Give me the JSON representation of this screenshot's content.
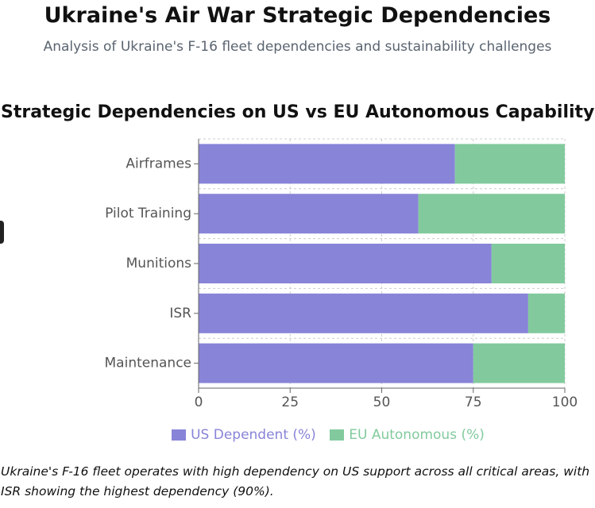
{
  "header": {
    "title": "Ukraine's Air War Strategic Dependencies",
    "subtitle": "Analysis of Ukraine's F-16 fleet dependencies and sustainability challenges"
  },
  "chart_data": {
    "type": "bar",
    "orientation": "horizontal",
    "stacked": true,
    "title": "Strategic Dependencies on US vs EU Autonomous Capability",
    "categories": [
      "Airframes",
      "Pilot Training",
      "Munitions",
      "ISR",
      "Maintenance"
    ],
    "series": [
      {
        "name": "US Dependent (%)",
        "values": [
          70,
          60,
          80,
          90,
          75
        ],
        "color": "#8884d8"
      },
      {
        "name": "EU Autonomous (%)",
        "values": [
          30,
          40,
          20,
          10,
          25
        ],
        "color": "#82ca9d"
      }
    ],
    "xticks": [
      "0",
      "25",
      "50",
      "75",
      "100"
    ],
    "xlim": [
      0,
      100
    ],
    "grid": true,
    "legend": "bottom"
  },
  "caption": "Ukraine's F-16 fleet operates with high dependency on US support across all critical areas, with ISR showing the highest dependency (90%)."
}
